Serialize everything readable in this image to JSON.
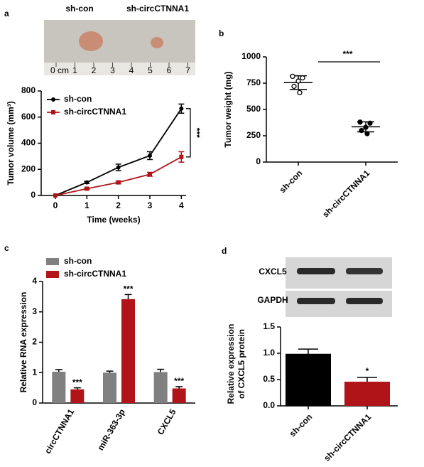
{
  "chart_data": [
    {
      "panel": "a",
      "type": "line",
      "photo_labels": [
        "sh-con",
        "sh-circCTNNA1"
      ],
      "ruler_labels": [
        "0 cm",
        "1",
        "2",
        "3",
        "4",
        "5",
        "6",
        "7"
      ],
      "x": [
        0,
        1,
        2,
        3,
        4
      ],
      "xlim": [
        -0.45,
        4.15
      ],
      "xticks": [
        0,
        1,
        2,
        3,
        4
      ],
      "ylim": [
        0,
        800
      ],
      "yticks": [
        0,
        200,
        400,
        600,
        800
      ],
      "xlabel": "Time (weeks)",
      "ylabel": "Tumor volume (mm³)",
      "series": [
        {
          "name": "sh-con",
          "color": "#000000",
          "marker": "circle",
          "values": [
            0,
            100,
            215,
            305,
            665
          ],
          "errors": [
            0,
            8,
            25,
            30,
            35
          ]
        },
        {
          "name": "sh-circCTNNA1",
          "color": "#b01419",
          "marker": "square",
          "values": [
            0,
            52,
            100,
            162,
            295
          ],
          "errors": [
            0,
            5,
            10,
            15,
            40
          ]
        }
      ],
      "annotation": "***",
      "legend": "upper left"
    },
    {
      "panel": "b",
      "type": "dot",
      "ylabel": "Tumor weight (mg)",
      "ylim": [
        0,
        1000
      ],
      "yticks": [
        0,
        250,
        500,
        750,
        1000
      ],
      "categories": [
        "sh-con",
        "sh-circCTNNA1"
      ],
      "groups": [
        {
          "points": [
            815,
            800,
            770,
            720,
            660
          ],
          "mean": 755,
          "sd": 65,
          "filled": false,
          "color": "#000000"
        },
        {
          "points": [
            380,
            370,
            330,
            300,
            270
          ],
          "mean": 335,
          "sd": 48,
          "filled": true,
          "color": "#000000"
        }
      ],
      "annotation": "***"
    },
    {
      "panel": "c",
      "type": "grouped-bar",
      "ylabel": "Relative RNA expression",
      "ylim": [
        0,
        4
      ],
      "yticks": [
        0,
        1,
        2,
        3,
        4
      ],
      "categories": [
        "circCTNNA1",
        "miR-363-3p",
        "CXCL5"
      ],
      "series": [
        {
          "name": "sh-con",
          "color": "#808080",
          "values": [
            1.03,
            1.0,
            1.02
          ],
          "errors": [
            0.07,
            0.05,
            0.09
          ]
        },
        {
          "name": "sh-circCTNNA1",
          "color": "#b01419",
          "values": [
            0.45,
            3.42,
            0.48
          ],
          "errors": [
            0.05,
            0.15,
            0.06
          ],
          "annotations": [
            "***",
            "***",
            "***"
          ]
        }
      ],
      "legend": "upper left"
    },
    {
      "panel": "d",
      "type": "bar",
      "blot_labels": [
        "CXCL5",
        "GAPDH"
      ],
      "ylabel": [
        "Relative expression",
        "of CXCL5 protein"
      ],
      "ylim": [
        0,
        1.5
      ],
      "yticks": [
        {
          "value": 0,
          "label": "0.0"
        },
        {
          "value": 0.5,
          "label": "0.5"
        },
        {
          "value": 1,
          "label": "1.0"
        },
        {
          "value": 1.5,
          "label": "1.5"
        }
      ],
      "categories": [
        "sh-con",
        "sh-circCTNNA1"
      ],
      "values": [
        0.99,
        0.46
      ],
      "errors": [
        0.09,
        0.08
      ],
      "colors": [
        "#000000",
        "#b01419"
      ],
      "annotation": "*"
    }
  ]
}
